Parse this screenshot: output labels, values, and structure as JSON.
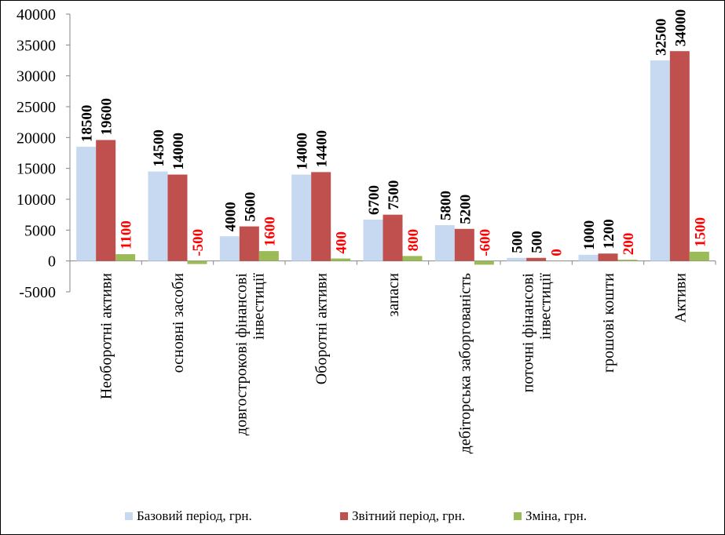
{
  "chart_data": {
    "type": "bar",
    "title": "",
    "xlabel": "",
    "ylabel": "",
    "ylim": [
      -5000,
      40000
    ],
    "yticks": [
      40000,
      35000,
      30000,
      25000,
      20000,
      15000,
      10000,
      5000,
      0,
      -5000
    ],
    "grid": false,
    "legend_position": "bottom",
    "categories": [
      [
        "Необоротні активи"
      ],
      [
        "основні засоби"
      ],
      [
        "довгострокові фінансові",
        "інвестиції"
      ],
      [
        "Оборотні активи"
      ],
      [
        "запаси"
      ],
      [
        "дебіторська заборгованість"
      ],
      [
        "поточні фінансові",
        "інвестиції"
      ],
      [
        "грошові кошти"
      ],
      [
        "Активи"
      ]
    ],
    "series": [
      {
        "name": "Базовий період, грн.",
        "color": "#C6D9F1",
        "label_color": "#000000",
        "values": [
          18500,
          14500,
          4000,
          14000,
          6700,
          5800,
          500,
          1000,
          32500
        ]
      },
      {
        "name": "Звітний період, грн.",
        "color": "#C0504D",
        "label_color": "#000000",
        "values": [
          19600,
          14000,
          5600,
          14400,
          7500,
          5200,
          500,
          1200,
          34000
        ]
      },
      {
        "name": "Зміна, грн.",
        "color": "#9BBB59",
        "label_color": "#FF0000",
        "values": [
          1100,
          -500,
          1600,
          400,
          800,
          -600,
          0,
          200,
          1500
        ]
      }
    ]
  }
}
